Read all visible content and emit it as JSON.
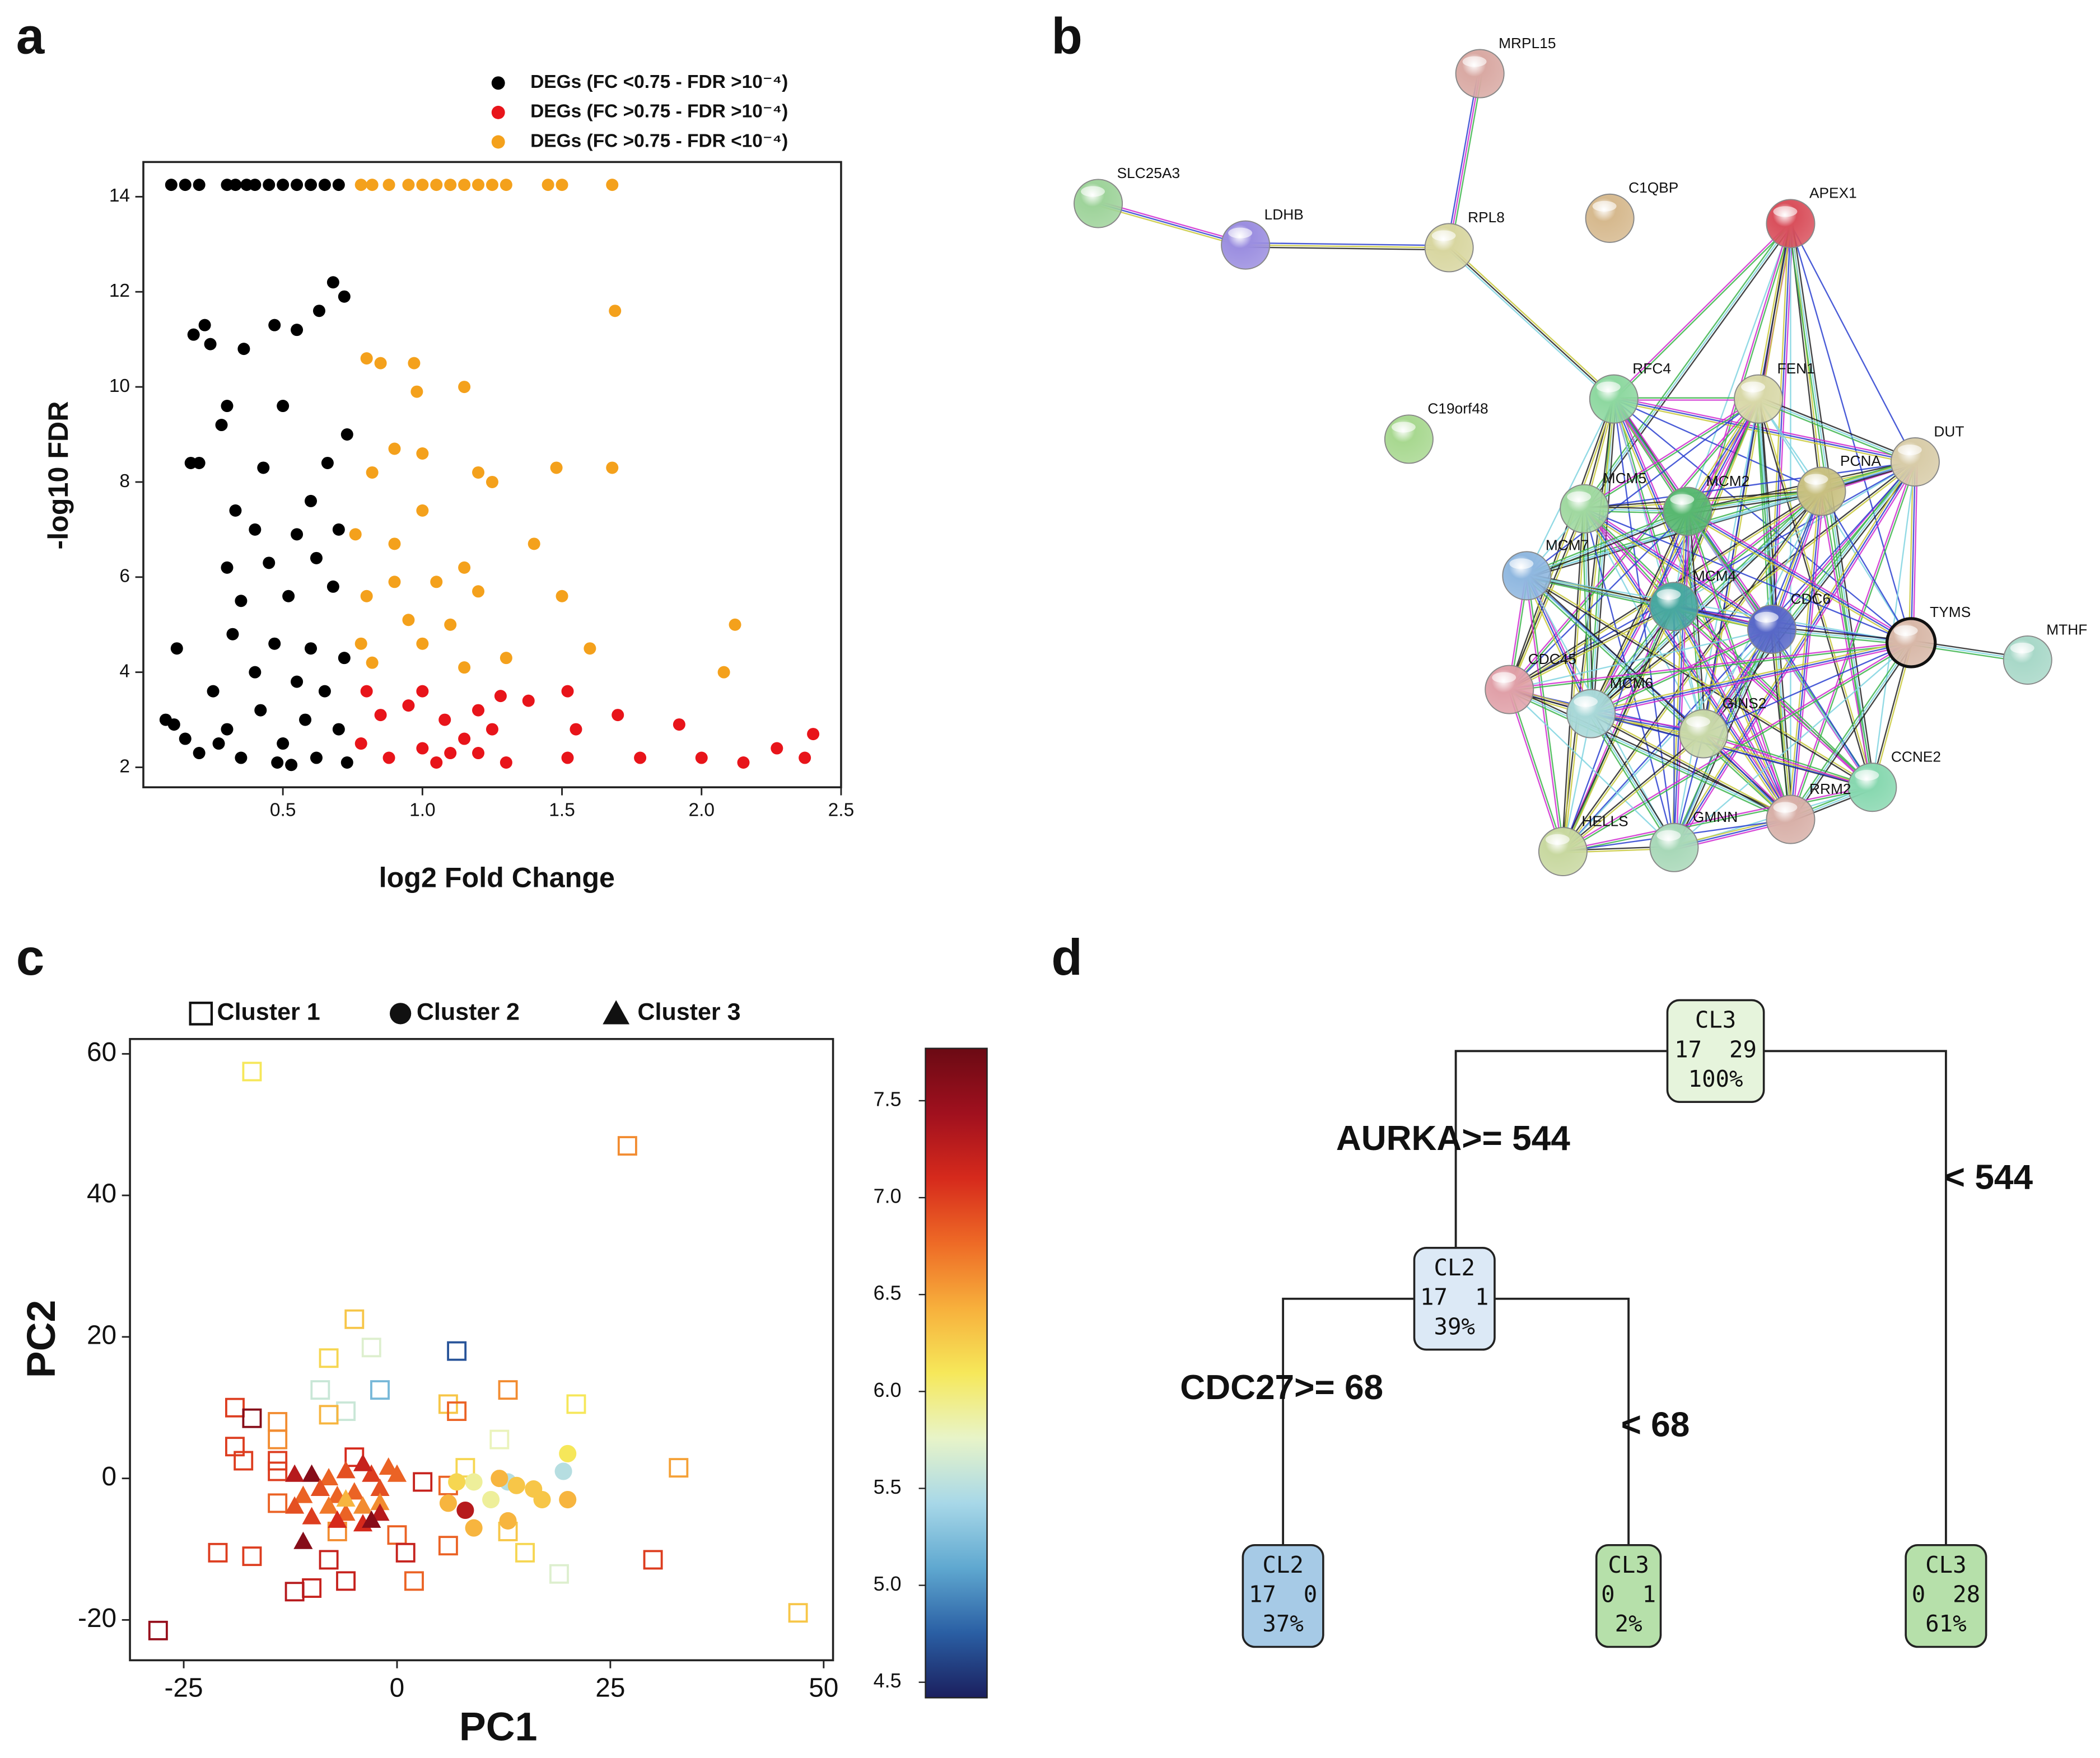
{
  "panels": [
    "a",
    "b",
    "c",
    "d"
  ],
  "chart_data": [
    {
      "type": "scatter",
      "xlabel": "log2 Fold Change",
      "ylabel": "-log10 FDR",
      "xlim": [
        0,
        2.5
      ],
      "ylim": [
        1.58,
        14.73
      ],
      "xticks": [
        0.5,
        {
          "value": 1,
          "label": "1.0"
        },
        1.5,
        {
          "value": 2,
          "label": "2.0"
        },
        2.5
      ],
      "yticks": [
        2,
        4,
        6,
        8,
        10,
        12,
        14
      ],
      "grid": false,
      "legend": "top",
      "series": [
        {
          "name": "DEGs (FC <0.75 - FDR >10⁻⁴)",
          "color": "#000000",
          "marker": "circle",
          "x": [
            0.1,
            0.15,
            0.2,
            0.3,
            0.33,
            0.37,
            0.4,
            0.45,
            0.5,
            0.55,
            0.6,
            0.65,
            0.7,
            0.68,
            0.72,
            0.63,
            0.22,
            0.18,
            0.47,
            0.55,
            0.36,
            0.24,
            0.3,
            0.5,
            0.28,
            0.17,
            0.2,
            0.73,
            0.66,
            0.43,
            0.33,
            0.6,
            0.4,
            0.55,
            0.7,
            0.3,
            0.45,
            0.62,
            0.35,
            0.52,
            0.68,
            0.12,
            0.32,
            0.47,
            0.6,
            0.72,
            0.4,
            0.55,
            0.25,
            0.65,
            0.08,
            0.15,
            0.3,
            0.42,
            0.5,
            0.58,
            0.7,
            0.2,
            0.35,
            0.48,
            0.62,
            0.73,
            0.11,
            0.27,
            0.53
          ],
          "values": [
            14.25,
            14.25,
            14.25,
            14.25,
            14.25,
            14.25,
            14.25,
            14.25,
            14.25,
            14.25,
            14.25,
            14.25,
            14.25,
            12.2,
            11.9,
            11.6,
            11.3,
            11.1,
            11.3,
            11.2,
            10.8,
            10.9,
            9.6,
            9.6,
            9.2,
            8.4,
            8.4,
            9.0,
            8.4,
            8.3,
            7.4,
            7.6,
            7.0,
            6.9,
            7.0,
            6.2,
            6.3,
            6.4,
            5.5,
            5.6,
            5.8,
            4.5,
            4.8,
            4.6,
            4.5,
            4.3,
            4.0,
            3.8,
            3.6,
            3.6,
            3.0,
            2.6,
            2.8,
            3.2,
            2.5,
            3.0,
            2.8,
            2.3,
            2.2,
            2.1,
            2.2,
            2.1,
            2.9,
            2.5,
            2.05
          ]
        },
        {
          "name": "DEGs (FC >0.75 - FDR >10⁻⁴)",
          "color": "#e8141a",
          "marker": "circle",
          "x": [
            0.8,
            0.85,
            0.95,
            1.0,
            1.08,
            1.2,
            1.28,
            1.38,
            1.52,
            0.78,
            0.88,
            1.0,
            1.05,
            1.15,
            1.25,
            1.3,
            1.52,
            1.55,
            1.7,
            1.78,
            1.92,
            2.0,
            2.15,
            2.27,
            2.37,
            2.4,
            1.1,
            1.2
          ],
          "values": [
            3.6,
            3.1,
            3.3,
            3.6,
            3.0,
            3.2,
            3.5,
            3.4,
            3.6,
            2.5,
            2.2,
            2.4,
            2.1,
            2.6,
            2.8,
            2.1,
            2.2,
            2.8,
            3.1,
            2.2,
            2.9,
            2.2,
            2.1,
            2.4,
            2.2,
            2.7,
            2.3,
            2.3
          ]
        },
        {
          "name": "DEGs (FC >0.75 - FDR <10⁻⁴)",
          "color": "#f4a11c",
          "marker": "circle",
          "x": [
            0.78,
            0.82,
            0.88,
            0.95,
            1.0,
            1.05,
            1.1,
            1.15,
            1.2,
            1.25,
            1.3,
            1.45,
            1.5,
            1.68,
            1.69,
            0.8,
            0.85,
            0.97,
            0.98,
            1.15,
            1.0,
            0.9,
            0.82,
            1.2,
            1.25,
            1.48,
            1.68,
            1.0,
            0.76,
            0.9,
            1.4,
            1.15,
            0.9,
            1.05,
            1.2,
            0.8,
            1.5,
            0.95,
            1.1,
            0.78,
            1.3,
            1.6,
            2.12,
            2.08,
            1.15,
            0.82,
            1.0
          ],
          "values": [
            14.25,
            14.25,
            14.25,
            14.25,
            14.25,
            14.25,
            14.25,
            14.25,
            14.25,
            14.25,
            14.25,
            14.25,
            14.25,
            14.25,
            11.6,
            10.6,
            10.5,
            10.5,
            9.9,
            10.0,
            8.6,
            8.7,
            8.2,
            8.2,
            8.0,
            8.3,
            8.3,
            7.4,
            6.9,
            6.7,
            6.7,
            6.2,
            5.9,
            5.9,
            5.7,
            5.6,
            5.6,
            5.1,
            5.0,
            4.6,
            4.3,
            4.5,
            5.0,
            4.0,
            4.1,
            4.2,
            4.6
          ]
        }
      ]
    },
    {
      "type": "scatter",
      "xlabel": "PC1",
      "ylabel": "PC2",
      "xlim": [
        -31.3,
        51.1
      ],
      "ylim": [
        -25.7,
        62.1
      ],
      "xticks": [
        -25,
        0,
        25,
        50
      ],
      "yticks": [
        -20,
        0,
        20,
        40,
        60
      ],
      "grid": false,
      "legend": "top",
      "clim": [
        4.42,
        7.77
      ],
      "cticks": [
        4.5,
        {
          "value": 5,
          "label": "5.0"
        },
        5.5,
        {
          "value": 6,
          "label": "6.0"
        },
        6.5,
        {
          "value": 7,
          "label": "7.0"
        },
        7.5
      ],
      "colormap": [
        "#1b1f5e",
        "#2a5fa4",
        "#5fa8d0",
        "#a8d8e8",
        "#e8f4c8",
        "#f6e85a",
        "#f7b03c",
        "#ee6a26",
        "#d62a1c",
        "#a0101e",
        "#6b0a14"
      ],
      "series": [
        {
          "name": "Cluster 1",
          "marker": "square",
          "x": [
            -17,
            27,
            -5,
            -3,
            7,
            -8,
            -9,
            -2,
            -6,
            -8,
            13,
            6,
            21,
            7,
            12,
            -19,
            -17,
            -14,
            -19,
            -14,
            -18,
            -14,
            -14,
            -5,
            33,
            8,
            3,
            -14,
            0,
            -7,
            6,
            13,
            15,
            -21,
            -17,
            -8,
            1,
            30,
            19,
            -6,
            -10,
            -12,
            2,
            47,
            -28,
            6
          ],
          "values": [
            57.5,
            47,
            22.5,
            18.5,
            18,
            17,
            12.5,
            12.5,
            9.5,
            9,
            12.5,
            10.5,
            10.5,
            9.5,
            5.5,
            10,
            8.5,
            8,
            4.5,
            5.5,
            2.5,
            2.5,
            1,
            3,
            1.5,
            1.5,
            -0.5,
            -3.5,
            -8,
            -7.5,
            -9.5,
            -7.5,
            -10.5,
            -10.5,
            -11,
            -11.5,
            -10.5,
            -11.5,
            -13.5,
            -14.5,
            -15.5,
            -16,
            -14.5,
            -19,
            -21.5,
            -1
          ],
          "color_values": [
            6.1,
            6.6,
            6.3,
            5.7,
            4.7,
            6.2,
            5.6,
            5.2,
            5.6,
            6.4,
            6.6,
            6.3,
            6.1,
            6.8,
            5.8,
            7.0,
            7.6,
            6.6,
            7.0,
            6.6,
            7.0,
            7.0,
            7.0,
            7.1,
            6.5,
            6.2,
            7.2,
            6.8,
            6.8,
            6.6,
            6.8,
            6.3,
            6.2,
            7.0,
            7.0,
            7.2,
            7.2,
            7.0,
            5.7,
            7.2,
            7.2,
            7.3,
            6.8,
            6.3,
            7.5,
            6.8
          ]
        },
        {
          "name": "Cluster 2",
          "marker": "circle",
          "x": [
            20,
            19.5,
            13,
            12,
            16,
            9,
            11,
            8,
            6,
            9,
            13,
            17,
            20,
            14,
            7
          ],
          "values": [
            3.5,
            1,
            -0.5,
            0,
            -1.5,
            -0.5,
            -3,
            -4.5,
            -3.5,
            -7,
            -6,
            -3,
            -3,
            -1,
            -0.5
          ],
          "color_values": [
            6.1,
            5.5,
            5.5,
            6.4,
            6.3,
            5.9,
            5.9,
            7.3,
            6.4,
            6.4,
            6.4,
            6.3,
            6.4,
            6.3,
            6.2
          ]
        },
        {
          "name": "Cluster 3",
          "marker": "triangle",
          "x": [
            -10,
            -12,
            -8,
            -6,
            -3,
            -1,
            0,
            -4,
            -9,
            -11,
            -7,
            -5,
            -2,
            -12,
            -8,
            -6,
            -4,
            -2,
            -10,
            -7,
            -4,
            -2,
            -11,
            -6,
            -3
          ],
          "values": [
            0.5,
            0.5,
            0,
            1,
            0.5,
            1.5,
            0.5,
            2,
            -1.5,
            -2.5,
            -2.5,
            -2,
            -1.5,
            -4,
            -4,
            -5,
            -4,
            -3.5,
            -5.5,
            -6,
            -6.5,
            -5,
            -9,
            -3,
            -6
          ],
          "color_values": [
            7.6,
            7.3,
            6.8,
            6.9,
            7.0,
            6.8,
            6.8,
            7.2,
            6.9,
            6.8,
            6.8,
            6.8,
            6.9,
            6.9,
            6.7,
            6.8,
            6.6,
            6.6,
            7.0,
            7.1,
            7.1,
            7.3,
            7.6,
            6.4,
            7.6
          ]
        }
      ]
    }
  ],
  "network": {
    "nodes": [
      {
        "label": "MRPL15",
        "color": "#d9a9a3"
      },
      {
        "label": "SLC25A3",
        "color": "#9ed39a"
      },
      {
        "label": "LDHB",
        "color": "#9b8ee0"
      },
      {
        "label": "RPL8",
        "color": "#d8d6a0"
      },
      {
        "label": "C1QBP",
        "color": "#d6b98e"
      },
      {
        "label": "APEX1",
        "color": "#d9505c"
      },
      {
        "label": "C19orf48",
        "color": "#a8d890"
      },
      {
        "label": "RFC4",
        "color": "#8ed8a0"
      },
      {
        "label": "FEN1",
        "color": "#d8d8a8"
      },
      {
        "label": "DUT",
        "color": "#d8cca8"
      },
      {
        "label": "PCNA",
        "color": "#c8c080"
      },
      {
        "label": "MCM5",
        "color": "#a0d8a0"
      },
      {
        "label": "MCM2",
        "color": "#58b870"
      },
      {
        "label": "MCM7",
        "color": "#90b8e0"
      },
      {
        "label": "MCM4",
        "color": "#48a8a0"
      },
      {
        "label": "CDC6",
        "color": "#5868c8"
      },
      {
        "label": "TYMS",
        "color": "#d8b8a8",
        "outlined": true
      },
      {
        "label": "MTHF",
        "color": "#a8d8c8"
      },
      {
        "label": "CDC45",
        "color": "#e0a0a8"
      },
      {
        "label": "MCM6",
        "color": "#a8d8d8"
      },
      {
        "label": "GINS2",
        "color": "#c8d8a8"
      },
      {
        "label": "CCNE2",
        "color": "#88d8b0"
      },
      {
        "label": "RRM2",
        "color": "#d8b0a8"
      },
      {
        "label": "GMNN",
        "color": "#a8d8b8"
      },
      {
        "label": "HELLS",
        "color": "#c8d8a0"
      }
    ]
  },
  "tree": {
    "nodes": [
      {
        "class": "CL3",
        "counts": "17  29",
        "percent": "100%",
        "color": "#e6f4dc"
      },
      {
        "class": "CL2",
        "counts": "17  1",
        "percent": "39%",
        "color": "#dce9f6"
      },
      {
        "class": "CL2",
        "counts": "17  0",
        "percent": "37%",
        "color": "#a6cae6"
      },
      {
        "class": "CL3",
        "counts": "0  1",
        "percent": "2%",
        "color": "#b6e0aa"
      },
      {
        "class": "CL3",
        "counts": "0  28",
        "percent": "61%",
        "color": "#b6e0aa"
      }
    ],
    "splits": [
      "AURKA>= 544",
      "< 544",
      "CDC27>= 68",
      "< 68"
    ]
  }
}
